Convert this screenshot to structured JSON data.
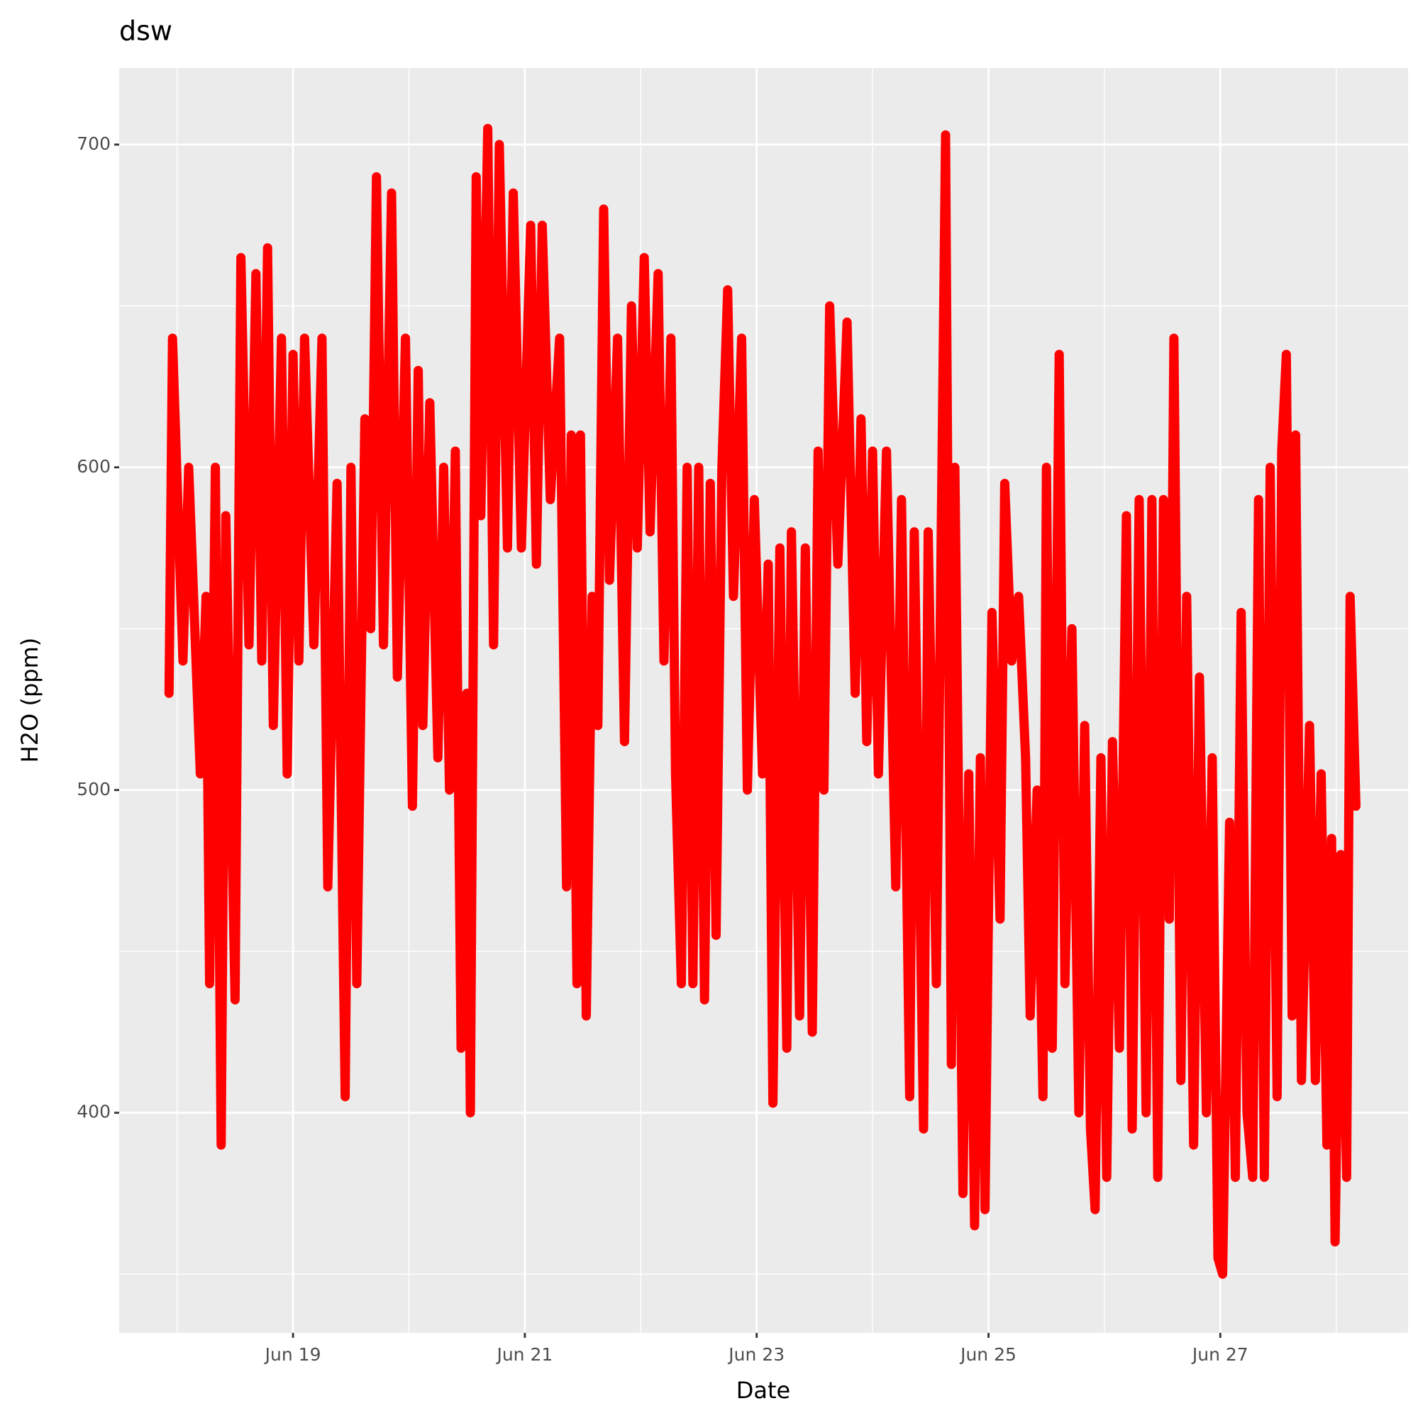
{
  "chart_data": {
    "type": "line",
    "title": "dsw",
    "x_label": "Date",
    "y_label": "H2O (ppm)",
    "x": [
      17.93,
      17.96,
      18.05,
      18.1,
      18.2,
      18.25,
      18.28,
      18.33,
      18.38,
      18.42,
      18.5,
      18.55,
      18.62,
      18.68,
      18.73,
      18.78,
      18.83,
      18.9,
      18.95,
      19.0,
      19.05,
      19.1,
      19.18,
      19.25,
      19.3,
      19.38,
      19.45,
      19.5,
      19.55,
      19.62,
      19.67,
      19.72,
      19.78,
      19.85,
      19.9,
      19.97,
      20.03,
      20.08,
      20.12,
      20.18,
      20.25,
      20.3,
      20.35,
      20.4,
      20.45,
      20.5,
      20.53,
      20.58,
      20.62,
      20.68,
      20.73,
      20.78,
      20.85,
      20.9,
      20.97,
      21.05,
      21.1,
      21.15,
      21.22,
      21.3,
      21.36,
      21.4,
      21.45,
      21.48,
      21.53,
      21.58,
      21.63,
      21.68,
      21.73,
      21.8,
      21.86,
      21.92,
      21.97,
      22.03,
      22.08,
      22.15,
      22.2,
      22.26,
      22.3,
      22.35,
      22.4,
      22.45,
      22.5,
      22.55,
      22.6,
      22.65,
      22.7,
      22.75,
      22.8,
      22.87,
      22.92,
      22.98,
      23.05,
      23.1,
      23.14,
      23.2,
      23.26,
      23.3,
      23.37,
      23.42,
      23.48,
      23.53,
      23.58,
      23.63,
      23.7,
      23.78,
      23.85,
      23.9,
      23.95,
      24.0,
      24.05,
      24.12,
      24.2,
      24.25,
      24.32,
      24.36,
      24.44,
      24.48,
      24.55,
      24.63,
      24.68,
      24.71,
      24.78,
      24.83,
      24.88,
      24.93,
      24.97,
      25.03,
      25.1,
      25.14,
      25.2,
      25.26,
      25.32,
      25.36,
      25.42,
      25.47,
      25.5,
      25.55,
      25.61,
      25.66,
      25.72,
      25.78,
      25.83,
      25.88,
      25.92,
      25.97,
      26.02,
      26.07,
      26.13,
      26.19,
      26.24,
      26.3,
      26.36,
      26.41,
      26.46,
      26.51,
      26.56,
      26.6,
      26.66,
      26.71,
      26.77,
      26.82,
      26.88,
      26.93,
      26.98,
      27.02,
      27.08,
      27.13,
      27.18,
      27.23,
      27.28,
      27.33,
      27.38,
      27.43,
      27.49,
      27.53,
      27.57,
      27.62,
      27.65,
      27.7,
      27.77,
      27.82,
      27.87,
      27.92,
      27.96,
      27.99,
      28.04,
      28.09,
      28.12,
      28.17
    ],
    "series": [
      {
        "name": "H2O",
        "color": "#ff0000",
        "values": [
          530,
          640,
          540,
          600,
          505,
          560,
          440,
          600,
          390,
          585,
          435,
          665,
          545,
          660,
          540,
          668,
          520,
          640,
          505,
          635,
          540,
          640,
          545,
          640,
          470,
          595,
          405,
          600,
          440,
          615,
          550,
          690,
          545,
          685,
          535,
          640,
          495,
          630,
          520,
          620,
          510,
          600,
          500,
          605,
          420,
          530,
          400,
          690,
          585,
          705,
          545,
          700,
          575,
          685,
          575,
          675,
          570,
          675,
          590,
          640,
          470,
          610,
          440,
          610,
          430,
          560,
          520,
          680,
          565,
          640,
          515,
          650,
          575,
          665,
          580,
          660,
          540,
          640,
          505,
          440,
          600,
          440,
          600,
          435,
          595,
          455,
          600,
          655,
          560,
          640,
          500,
          590,
          505,
          570,
          403,
          575,
          420,
          580,
          430,
          575,
          425,
          605,
          500,
          650,
          570,
          645,
          530,
          615,
          515,
          605,
          505,
          605,
          470,
          590,
          405,
          580,
          395,
          580,
          440,
          703,
          415,
          600,
          375,
          505,
          365,
          510,
          370,
          555,
          460,
          595,
          540,
          560,
          510,
          430,
          500,
          405,
          600,
          420,
          635,
          440,
          550,
          400,
          520,
          395,
          370,
          510,
          380,
          515,
          420,
          585,
          395,
          590,
          400,
          590,
          380,
          590,
          460,
          640,
          410,
          560,
          390,
          535,
          400,
          510,
          355,
          350,
          490,
          380,
          555,
          400,
          380,
          590,
          380,
          600,
          405,
          605,
          635,
          430,
          610,
          410,
          520,
          410,
          505,
          390,
          485,
          360,
          480,
          380,
          560,
          495
        ]
      }
    ],
    "xlim": [
      17.5,
      28.62
    ],
    "xticks": [
      {
        "value": 19,
        "label": "Jun 19"
      },
      {
        "value": 21,
        "label": "Jun 21"
      },
      {
        "value": 23,
        "label": "Jun 23"
      },
      {
        "value": 25,
        "label": "Jun 25"
      },
      {
        "value": 27,
        "label": "Jun 27"
      }
    ],
    "ylim": [
      331.8,
      723.7
    ],
    "yticks": [
      400,
      500,
      600,
      700
    ],
    "grid": true
  }
}
